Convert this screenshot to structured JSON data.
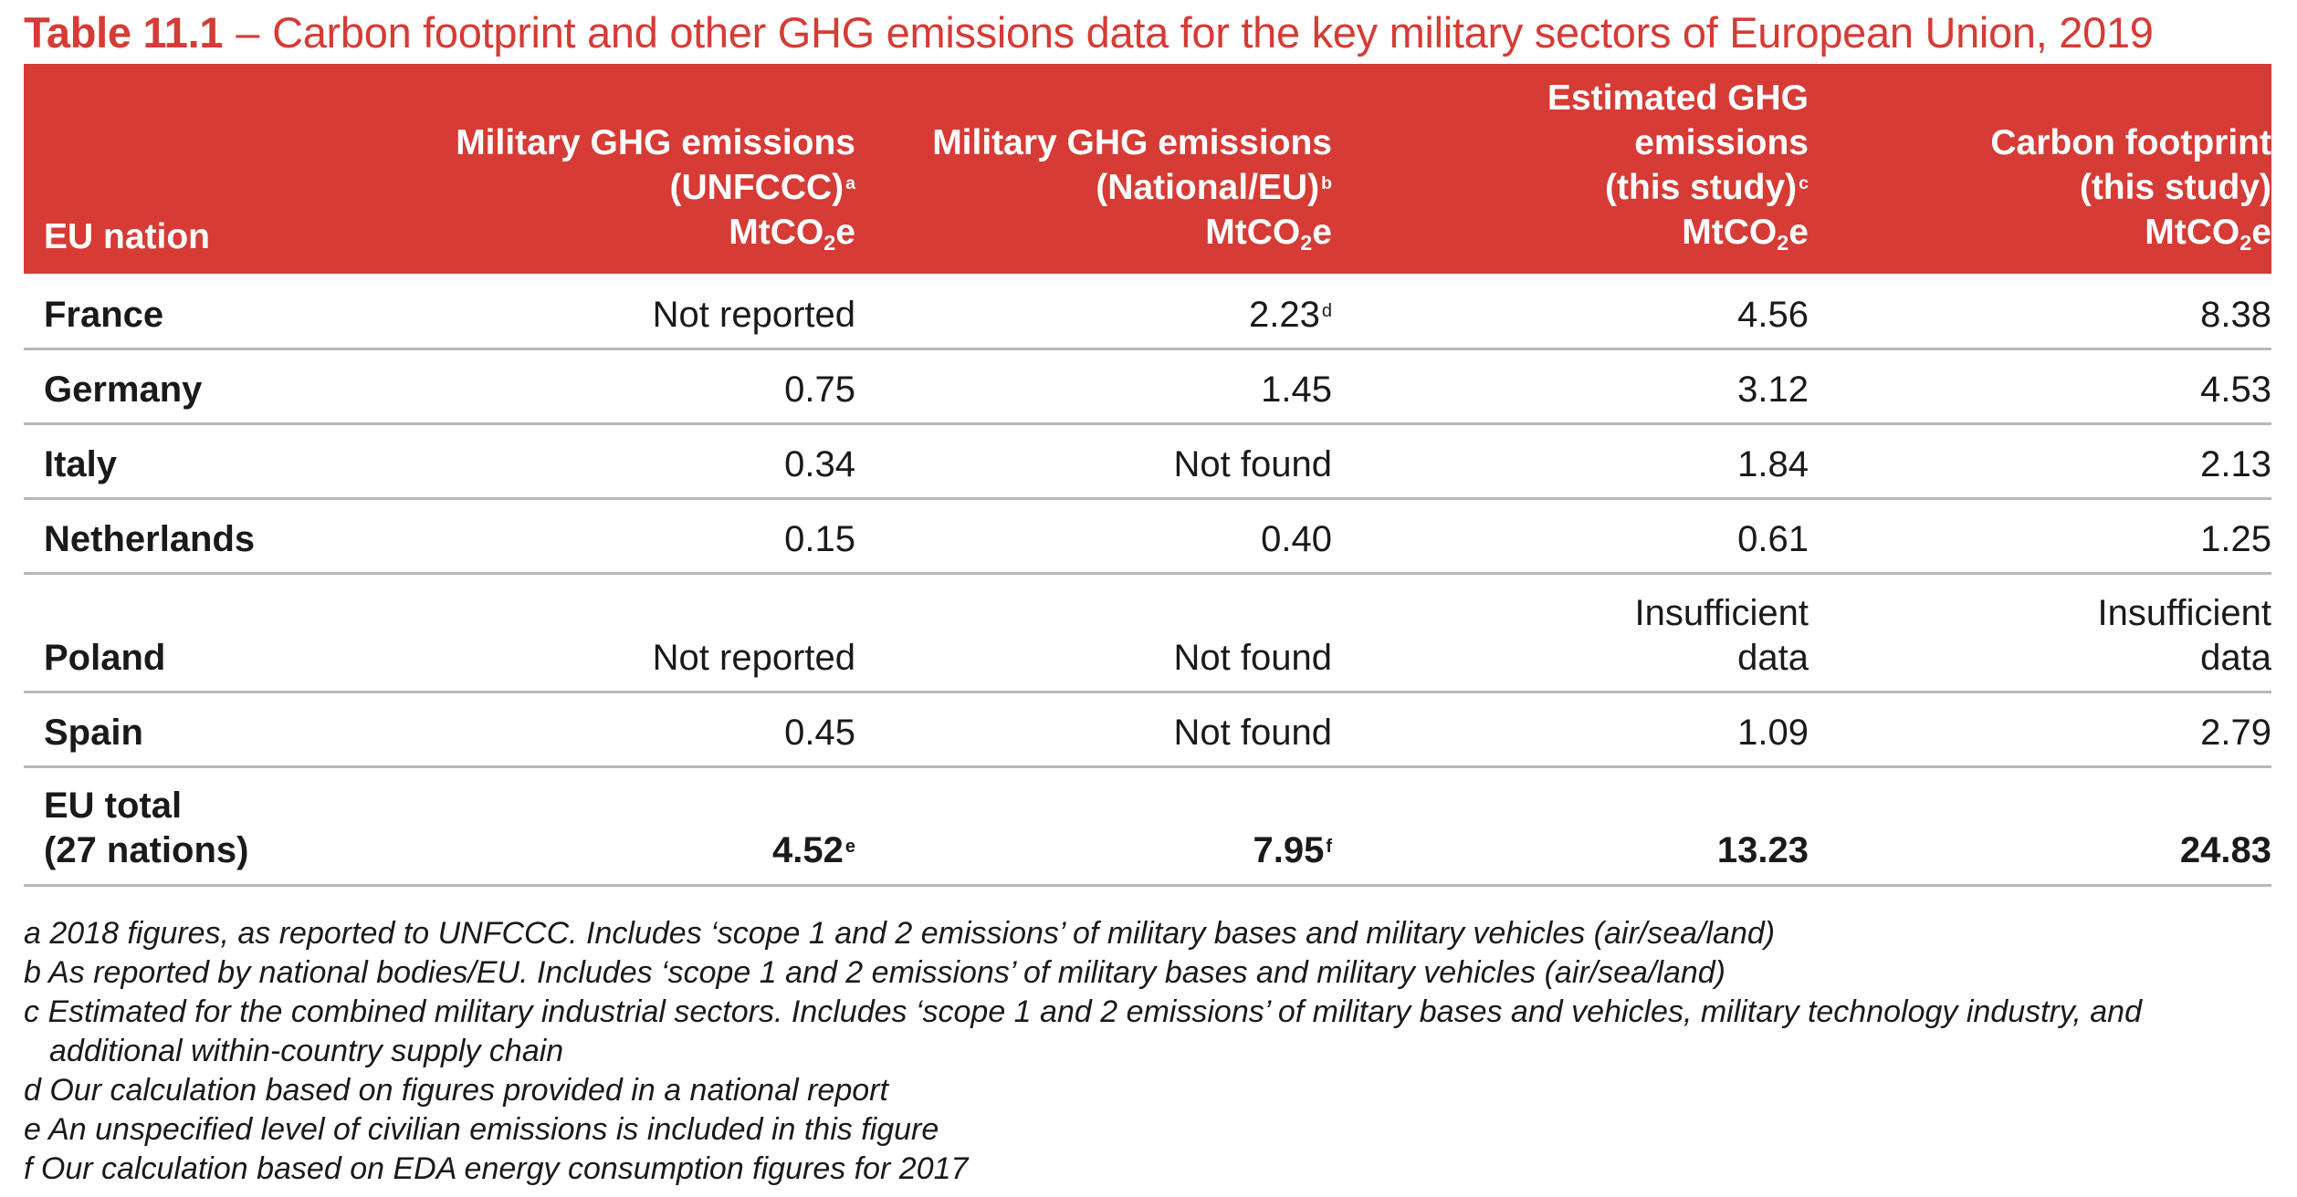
{
  "title": {
    "label": "Table 11.1",
    "dash": "–",
    "text": "Carbon footprint and other GHG emissions data for the key military sectors of European Union, 2019"
  },
  "table": {
    "headers": {
      "nation": "EU nation",
      "col1": {
        "line1": "Military GHG emissions",
        "line2": "(UNFCCC)",
        "note": "a",
        "unit_pre": "MtCO",
        "unit_sub": "2",
        "unit_post": "e"
      },
      "col2": {
        "line1": "Military GHG emissions",
        "line2": "(National/EU)",
        "note": "b",
        "unit_pre": "MtCO",
        "unit_sub": "2",
        "unit_post": "e"
      },
      "col3": {
        "line1": "Estimated GHG",
        "line2": "emissions",
        "line3": "(this study)",
        "note": "c",
        "unit_pre": "MtCO",
        "unit_sub": "2",
        "unit_post": "e"
      },
      "col4": {
        "line1": "Carbon footprint",
        "line2": "(this study)",
        "unit_pre": "MtCO",
        "unit_sub": "2",
        "unit_post": "e"
      }
    },
    "rows": [
      {
        "nation": "France",
        "c1": "Not reported",
        "c2": "2.23",
        "c2_note": "d",
        "c3": "4.56",
        "c4": "8.38"
      },
      {
        "nation": "Germany",
        "c1": "0.75",
        "c2": "1.45",
        "c3": "3.12",
        "c4": "4.53"
      },
      {
        "nation": "Italy",
        "c1": "0.34",
        "c2": "Not found",
        "c3": "1.84",
        "c4": "2.13"
      },
      {
        "nation": "Netherlands",
        "c1": "0.15",
        "c2": "0.40",
        "c3": "0.61",
        "c4": "1.25"
      },
      {
        "nation": "Poland",
        "c1": "Not reported",
        "c2": "Not found",
        "c3_line1": "Insufficient",
        "c3_line2": "data",
        "c4_line1": "Insufficient",
        "c4_line2": "data"
      },
      {
        "nation": "Spain",
        "c1": "0.45",
        "c2": "Not found",
        "c3": "1.09",
        "c4": "2.79"
      }
    ],
    "total": {
      "nation_line1": "EU total",
      "nation_line2": "(27 nations)",
      "c1": "4.52",
      "c1_note": "e",
      "c2": "7.95",
      "c2_note": "f",
      "c3": "13.23",
      "c4": "24.83"
    }
  },
  "footnotes": [
    "a 2018 figures, as reported to UNFCCC. Includes ‘scope 1 and 2 emissions’ of military bases and military vehicles (air/sea/land)",
    "b As reported by national bodies/EU. Includes ‘scope 1 and 2 emissions’ of military bases and military vehicles (air/sea/land)",
    "c Estimated for the combined military industrial sectors. Includes ‘scope 1 and 2 emissions’ of military bases and vehicles, military technology industry, and additional within-country supply chain",
    "d Our calculation based on figures provided in a national report",
    "e An unspecified level of civilian emissions is included in this figure",
    "f Our calculation based on EDA energy consumption figures for 2017"
  ],
  "colors": {
    "accent": "#d63b35",
    "header_text": "#ffffff",
    "rule": "#b8b8b8",
    "body_text": "#1a1a1a"
  }
}
